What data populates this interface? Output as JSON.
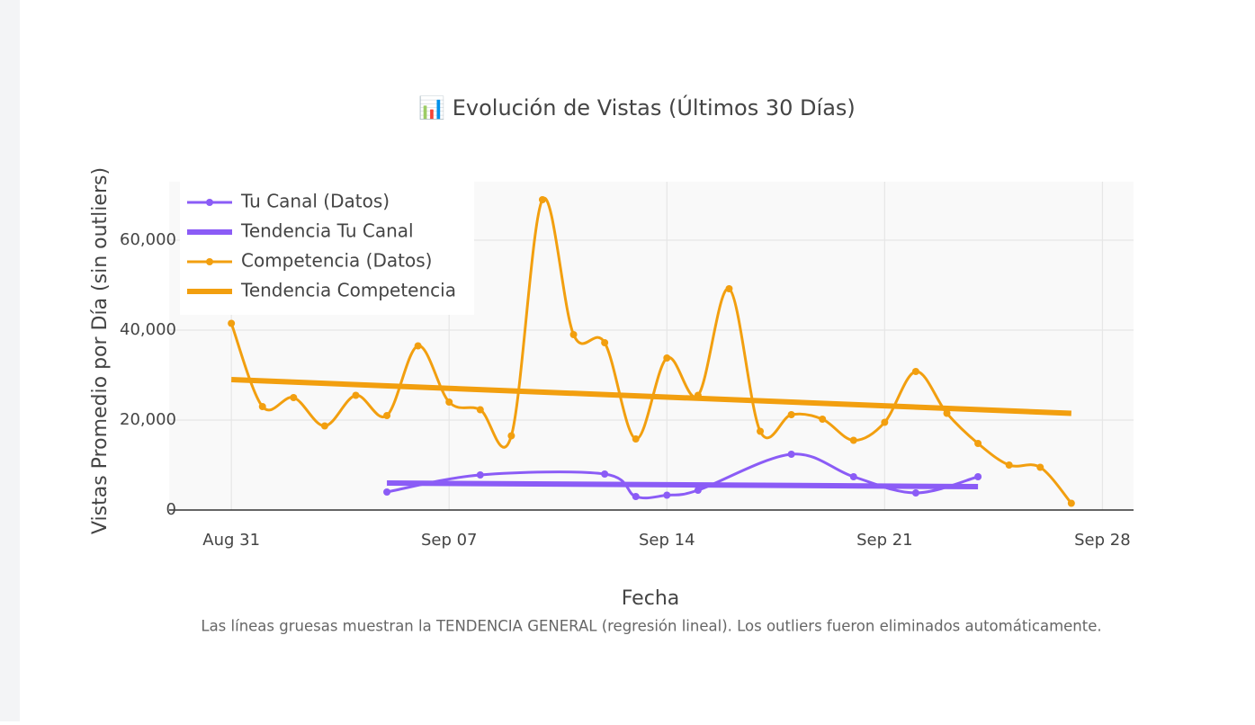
{
  "chart_data": {
    "type": "line",
    "title": "📊 Evolución de Vistas (Últimos 30 Días)",
    "x_label": "Fecha",
    "y_label": "Vistas Promedio por Día (sin outliers)",
    "note": "Las líneas gruesas muestran la TENDENCIA GENERAL (regresión lineal). Los outliers fueron eliminados automáticamente.",
    "xlim": [
      "Aug 29",
      "Sep 29"
    ],
    "xticks": [
      "Aug 31",
      "Sep 07",
      "Sep 14",
      "Sep 21",
      "Sep 28"
    ],
    "ylim": [
      0,
      73000
    ],
    "yticks": [
      0,
      {
        "value": 20000,
        "label": "20,000"
      },
      {
        "value": 40000,
        "label": "40,000"
      },
      {
        "value": 60000,
        "label": "60,000"
      }
    ],
    "grid": true,
    "legend": "top-left",
    "series": [
      {
        "name": "Tu Canal (Datos)",
        "color": "#8b5cf6",
        "mode": "lines+markers",
        "x": [
          "Sep 05",
          "Sep 08",
          "Sep 12",
          "Sep 13",
          "Sep 14",
          "Sep 15",
          "Sep 18",
          "Sep 20",
          "Sep 22",
          "Sep 24"
        ],
        "values": [
          4000,
          7800,
          8000,
          3000,
          3300,
          4400,
          12400,
          7400,
          3800,
          7400
        ]
      },
      {
        "name": "Tendencia Tu Canal",
        "color": "#8b5cf6",
        "mode": "lines",
        "x": [
          "Sep 05",
          "Sep 24"
        ],
        "values": [
          6000,
          5200
        ]
      },
      {
        "name": "Competencia (Datos)",
        "color": "#f29f0f",
        "mode": "lines+markers",
        "x": [
          "Aug 31",
          "Sep 01",
          "Sep 02",
          "Sep 03",
          "Sep 04",
          "Sep 05",
          "Sep 06",
          "Sep 07",
          "Sep 08",
          "Sep 09",
          "Sep 10",
          "Sep 11",
          "Sep 12",
          "Sep 13",
          "Sep 14",
          "Sep 15",
          "Sep 16",
          "Sep 17",
          "Sep 18",
          "Sep 19",
          "Sep 20",
          "Sep 21",
          "Sep 22",
          "Sep 23",
          "Sep 24",
          "Sep 25",
          "Sep 26",
          "Sep 27"
        ],
        "values": [
          41500,
          23000,
          25000,
          18700,
          25500,
          21000,
          36500,
          24000,
          22300,
          16500,
          69000,
          39000,
          37200,
          15800,
          33800,
          25500,
          49200,
          17500,
          21200,
          20200,
          15500,
          19500,
          30800,
          21500,
          14800,
          10000,
          9500,
          1500
        ]
      },
      {
        "name": "Tendencia Competencia",
        "color": "#f29f0f",
        "mode": "lines",
        "x": [
          "Aug 31",
          "Sep 27"
        ],
        "values": [
          29000,
          21500
        ]
      }
    ]
  }
}
